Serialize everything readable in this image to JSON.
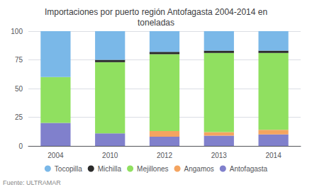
{
  "chart_data": {
    "type": "bar",
    "stacked": true,
    "title": "Importaciones por puerto región Antofagasta 2004-2014 en\ntoneladas",
    "categories": [
      "2004",
      "2010",
      "2012",
      "2013",
      "2014"
    ],
    "series": [
      {
        "name": "Antofagasta",
        "color": "#8080cc",
        "values": [
          20,
          11,
          8,
          9,
          10
        ]
      },
      {
        "name": "Angamos",
        "color": "#f4a460",
        "values": [
          0,
          0,
          5,
          3,
          4
        ]
      },
      {
        "name": "Mejillones",
        "color": "#90e060",
        "values": [
          40,
          62,
          67,
          69,
          67
        ]
      },
      {
        "name": "Michilla",
        "color": "#2a2a2a",
        "values": [
          0,
          2,
          2,
          2,
          2
        ]
      },
      {
        "name": "Tocopilla",
        "color": "#7ab8e8",
        "values": [
          40,
          25,
          18,
          17,
          17
        ]
      }
    ],
    "ylim": [
      0,
      100
    ],
    "yticks": [
      0,
      25,
      50,
      75,
      100
    ],
    "grid": true,
    "legend": "bottom",
    "annotations": [
      "Fuente: ULTRAMAR"
    ]
  }
}
